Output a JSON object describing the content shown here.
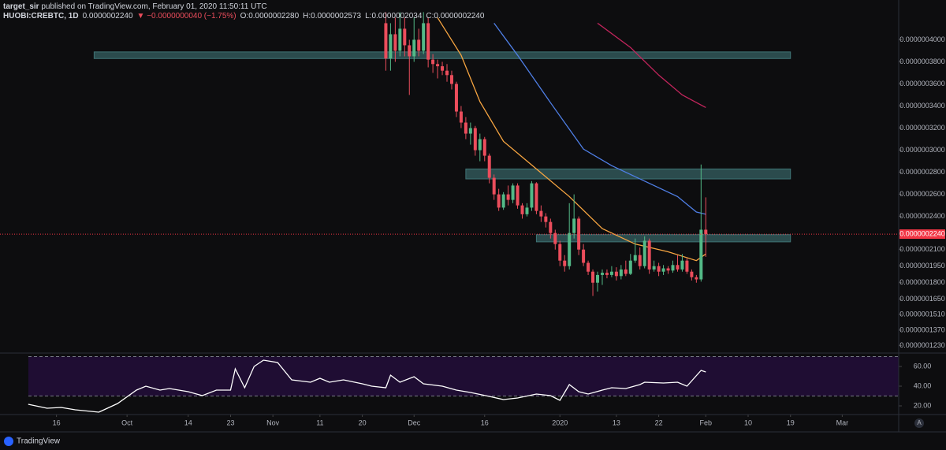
{
  "header": {
    "author": "target_sir",
    "published": " published on TradingView.com, February 01, 2020 11:50:11 UTC",
    "symbol": "HUOBI:CREBTC, 1D",
    "last": "0.0000002240",
    "change": "▼ −0.0000000040 (−1.75%)",
    "ohlc": [
      "O:0.0000002280",
      "H:0.0000002573",
      "L:0.0000002034",
      "C:0.0000002240"
    ]
  },
  "chart_data": [
    {
      "type": "candlestick",
      "x": [
        "2019-11-25",
        "2019-11-26",
        "2019-11-27",
        "2019-11-28",
        "2019-11-29",
        "2019-11-30",
        "2019-12-01",
        "2019-12-02",
        "2019-12-03",
        "2019-12-04",
        "2019-12-05",
        "2019-12-06",
        "2019-12-07",
        "2019-12-08",
        "2019-12-09",
        "2019-12-10",
        "2019-12-11",
        "2019-12-12",
        "2019-12-13",
        "2019-12-14",
        "2019-12-15",
        "2019-12-16",
        "2019-12-17",
        "2019-12-18",
        "2019-12-19",
        "2019-12-20",
        "2019-12-21",
        "2019-12-22",
        "2019-12-23",
        "2019-12-24",
        "2019-12-25",
        "2019-12-26",
        "2019-12-27",
        "2019-12-28",
        "2019-12-29",
        "2019-12-30",
        "2019-12-31",
        "2020-01-01",
        "2020-01-02",
        "2020-01-03",
        "2020-01-04",
        "2020-01-05",
        "2020-01-06",
        "2020-01-07",
        "2020-01-08",
        "2020-01-09",
        "2020-01-10",
        "2020-01-11",
        "2020-01-12",
        "2020-01-13",
        "2020-01-14",
        "2020-01-15",
        "2020-01-16",
        "2020-01-17",
        "2020-01-18",
        "2020-01-19",
        "2020-01-20",
        "2020-01-21",
        "2020-01-22",
        "2020-01-23",
        "2020-01-24",
        "2020-01-25",
        "2020-01-26",
        "2020-01-27",
        "2020-01-28",
        "2020-01-29",
        "2020-01-30",
        "2020-01-31",
        "2020-02-01"
      ],
      "open": [
        4.15e-07,
        3.83e-07,
        4.05e-07,
        3.9e-07,
        4.1e-07,
        3.95e-07,
        3.85e-07,
        4e-07,
        3.9e-07,
        4.15e-07,
        3.82e-07,
        3.78e-07,
        3.76e-07,
        3.72e-07,
        3.68e-07,
        3.6e-07,
        3.35e-07,
        3.25e-07,
        3.15e-07,
        3.2e-07,
        3e-07,
        3.1e-07,
        2.95e-07,
        2.75e-07,
        2.6e-07,
        2.48e-07,
        2.6e-07,
        2.55e-07,
        2.68e-07,
        2.5e-07,
        2.42e-07,
        2.48e-07,
        2.7e-07,
        2.45e-07,
        2.4e-07,
        2.35e-07,
        2.25e-07,
        2.15e-07,
        2e-07,
        1.95e-07,
        2.25e-07,
        2.38e-07,
        2.1e-07,
        1.98e-07,
        1.9e-07,
        1.8e-07,
        1.87e-07,
        1.89e-07,
        1.87e-07,
        1.9e-07,
        1.86e-07,
        1.92e-07,
        1.88e-07,
        2e-07,
        2.05e-07,
        1.95e-07,
        2.18e-07,
        1.92e-07,
        1.95e-07,
        1.9e-07,
        1.93e-07,
        1.91e-07,
        1.96e-07,
        1.92e-07,
        2e-07,
        1.9e-07,
        1.85e-07,
        1.83e-07,
        2.28e-07
      ],
      "high": [
        4.25e-07,
        4.15e-07,
        4.2e-07,
        4.25e-07,
        4.2e-07,
        4e-07,
        4.2e-07,
        4.1e-07,
        4.25e-07,
        4.2e-07,
        3.87e-07,
        3.82e-07,
        3.8e-07,
        3.78e-07,
        3.72e-07,
        3.62e-07,
        3.4e-07,
        3.3e-07,
        3.25e-07,
        3.22e-07,
        3.15e-07,
        3.12e-07,
        2.97e-07,
        2.78e-07,
        2.65e-07,
        2.62e-07,
        2.68e-07,
        2.7e-07,
        2.7e-07,
        2.52e-07,
        2.52e-07,
        2.72e-07,
        2.71e-07,
        2.5e-07,
        2.43e-07,
        2.38e-07,
        2.28e-07,
        2.18e-07,
        2.05e-07,
        2.52e-07,
        2.6e-07,
        2.4e-07,
        2.15e-07,
        2e-07,
        1.92e-07,
        1.9e-07,
        1.92e-07,
        1.92e-07,
        1.95e-07,
        1.94e-07,
        1.96e-07,
        2e-07,
        2.06e-07,
        2.2e-07,
        2.12e-07,
        2.22e-07,
        2.2e-07,
        2e-07,
        1.98e-07,
        1.96e-07,
        1.95e-07,
        2e-07,
        2.05e-07,
        2.06e-07,
        2.02e-07,
        1.92e-07,
        1.87e-07,
        2.87e-07,
        2.573e-07
      ],
      "low": [
        3.72e-07,
        3.72e-07,
        3.8e-07,
        3.85e-07,
        3.85e-07,
        3.5e-07,
        3.8e-07,
        3.85e-07,
        3.87e-07,
        3.75e-07,
        3.7e-07,
        3.65e-07,
        3.68e-07,
        3.62e-07,
        3.55e-07,
        3.3e-07,
        3.2e-07,
        3.1e-07,
        3.05e-07,
        2.95e-07,
        2.9e-07,
        2.9e-07,
        2.7e-07,
        2.55e-07,
        2.45e-07,
        2.46e-07,
        2.5e-07,
        2.52e-07,
        2.47e-07,
        2.38e-07,
        2.4e-07,
        2.45e-07,
        2.42e-07,
        2.35e-07,
        2.3e-07,
        2.2e-07,
        2.1e-07,
        1.95e-07,
        1.9e-07,
        1.92e-07,
        2.2e-07,
        2.05e-07,
        1.95e-07,
        1.87e-07,
        1.68e-07,
        1.72e-07,
        1.78e-07,
        1.84e-07,
        1.85e-07,
        1.82e-07,
        1.83e-07,
        1.86e-07,
        1.87e-07,
        1.98e-07,
        1.92e-07,
        1.93e-07,
        1.88e-07,
        1.9e-07,
        1.86e-07,
        1.87e-07,
        1.88e-07,
        1.89e-07,
        1.9e-07,
        1.9e-07,
        1.88e-07,
        1.82e-07,
        1.8e-07,
        1.81e-07,
        2.034e-07
      ],
      "close": [
        3.83e-07,
        4.05e-07,
        3.9e-07,
        4.1e-07,
        3.95e-07,
        3.85e-07,
        4e-07,
        3.9e-07,
        4.15e-07,
        3.82e-07,
        3.78e-07,
        3.76e-07,
        3.72e-07,
        3.68e-07,
        3.6e-07,
        3.35e-07,
        3.25e-07,
        3.15e-07,
        3.2e-07,
        3e-07,
        3.1e-07,
        2.95e-07,
        2.75e-07,
        2.6e-07,
        2.48e-07,
        2.6e-07,
        2.55e-07,
        2.68e-07,
        2.5e-07,
        2.42e-07,
        2.48e-07,
        2.7e-07,
        2.45e-07,
        2.4e-07,
        2.35e-07,
        2.25e-07,
        2.15e-07,
        2e-07,
        1.95e-07,
        2.25e-07,
        2.38e-07,
        2.1e-07,
        1.98e-07,
        1.9e-07,
        1.8e-07,
        1.87e-07,
        1.89e-07,
        1.87e-07,
        1.9e-07,
        1.86e-07,
        1.92e-07,
        1.88e-07,
        2e-07,
        2.05e-07,
        1.95e-07,
        2.18e-07,
        1.92e-07,
        1.95e-07,
        1.9e-07,
        1.93e-07,
        1.91e-07,
        1.96e-07,
        1.92e-07,
        2e-07,
        1.9e-07,
        1.85e-07,
        1.83e-07,
        2.28e-07,
        2.24e-07
      ],
      "up_color": "#53b987",
      "down_color": "#eb4d5c",
      "xlim": [
        "2019-09-04",
        "2020-03-13"
      ],
      "ylim": [
        1.17e-07,
        4.36e-07
      ],
      "yticks": [
        {
          "value": 4e-07,
          "label": "0.0000004000"
        },
        {
          "value": 3.8e-07,
          "label": "0.0000003800"
        },
        {
          "value": 3.6e-07,
          "label": "0.0000003600"
        },
        {
          "value": 3.4e-07,
          "label": "0.0000003400"
        },
        {
          "value": 3.2e-07,
          "label": "0.0000003200"
        },
        {
          "value": 3e-07,
          "label": "0.0000003000"
        },
        {
          "value": 2.8e-07,
          "label": "0.0000002800"
        },
        {
          "value": 2.6e-07,
          "label": "0.0000002600"
        },
        {
          "value": 2.4e-07,
          "label": "0.0000002400"
        },
        {
          "value": 2.1e-07,
          "label": "0.0000002100"
        },
        {
          "value": 1.95e-07,
          "label": "0.0000001950"
        },
        {
          "value": 1.8e-07,
          "label": "0.0000001800"
        },
        {
          "value": 1.65e-07,
          "label": "0.0000001650"
        },
        {
          "value": 1.51e-07,
          "label": "0.0000001510"
        },
        {
          "value": 1.37e-07,
          "label": "0.0000001370"
        },
        {
          "value": 1.23e-07,
          "label": "0.0000001230"
        }
      ],
      "xticks": [
        {
          "value": "2019-09-16",
          "label": "16"
        },
        {
          "value": "2019-10-01",
          "label": "Oct"
        },
        {
          "value": "2019-10-14",
          "label": "14"
        },
        {
          "value": "2019-10-23",
          "label": "23"
        },
        {
          "value": "2019-11-01",
          "label": "Nov"
        },
        {
          "value": "2019-11-11",
          "label": "11"
        },
        {
          "value": "2019-11-20",
          "label": "20"
        },
        {
          "value": "2019-12-01",
          "label": "Dec"
        },
        {
          "value": "2019-12-16",
          "label": "16"
        },
        {
          "value": "2020-01-01",
          "label": "2020"
        },
        {
          "value": "2020-01-13",
          "label": "13"
        },
        {
          "value": "2020-01-22",
          "label": "22"
        },
        {
          "value": "2020-02-01",
          "label": "Feb"
        },
        {
          "value": "2020-02-10",
          "label": "10"
        },
        {
          "value": "2020-02-19",
          "label": "19"
        },
        {
          "value": "2020-03-01",
          "label": "Mar"
        }
      ],
      "series": [
        {
          "color": "#f7a541",
          "x": [
            "2019-12-06",
            "2019-12-11",
            "2019-12-15",
            "2019-12-20",
            "2019-12-27",
            "2020-01-03",
            "2020-01-10",
            "2020-01-17",
            "2020-01-24",
            "2020-01-30",
            "2020-02-01"
          ],
          "values": [
            4.2e-07,
            3.86e-07,
            3.44e-07,
            3.08e-07,
            2.83e-07,
            2.58e-07,
            2.29e-07,
            2.15e-07,
            2.08e-07,
            2e-07,
            2.06e-07
          ]
        },
        {
          "color": "#4f7fe6",
          "x": [
            "2019-12-18",
            "2019-12-23",
            "2019-12-30",
            "2020-01-06",
            "2020-01-12",
            "2020-01-19",
            "2020-01-26",
            "2020-01-30",
            "2020-02-01"
          ],
          "values": [
            4.15e-07,
            3.86e-07,
            3.43e-07,
            3.01e-07,
            2.86e-07,
            2.72e-07,
            2.58e-07,
            2.44e-07,
            2.42e-07
          ]
        },
        {
          "color": "#c2255c",
          "x": [
            "2020-01-09",
            "2020-01-16",
            "2020-01-22",
            "2020-01-27",
            "2020-02-01"
          ],
          "values": [
            4.15e-07,
            3.93e-07,
            3.68e-07,
            3.5e-07,
            3.386e-07
          ]
        }
      ],
      "zones": [
        {
          "from": "2019-09-24",
          "to": "2020-02-19",
          "top": 3.89e-07,
          "bottom": 3.83e-07
        },
        {
          "from": "2019-12-12",
          "to": "2020-02-19",
          "top": 2.83e-07,
          "bottom": 2.74e-07
        },
        {
          "from": "2019-12-27",
          "to": "2020-02-19",
          "top": 2.235e-07,
          "bottom": 2.17e-07
        }
      ],
      "zone_color": "#3f7476",
      "price_line": {
        "value": 2.24e-07,
        "label": "0.0000002240",
        "color": "#f23645"
      }
    },
    {
      "type": "line",
      "x": [
        "2019-09-10",
        "2019-09-14",
        "2019-09-17",
        "2019-09-20",
        "2019-09-25",
        "2019-09-29",
        "2019-10-03",
        "2019-10-05",
        "2019-10-08",
        "2019-10-10",
        "2019-10-14",
        "2019-10-17",
        "2019-10-20",
        "2019-10-23",
        "2019-10-24",
        "2019-10-26",
        "2019-10-28",
        "2019-10-30",
        "2019-11-02",
        "2019-11-05",
        "2019-11-09",
        "2019-11-11",
        "2019-11-13",
        "2019-11-16",
        "2019-11-20",
        "2019-11-22",
        "2019-11-25",
        "2019-11-26",
        "2019-11-28",
        "2019-12-01",
        "2019-12-03",
        "2019-12-07",
        "2019-12-10",
        "2019-12-13",
        "2019-12-17",
        "2019-12-20",
        "2019-12-23",
        "2019-12-27",
        "2019-12-30",
        "2020-01-01",
        "2020-01-03",
        "2020-01-05",
        "2020-01-07",
        "2020-01-10",
        "2020-01-12",
        "2020-01-15",
        "2020-01-18",
        "2020-01-19",
        "2020-01-23",
        "2020-01-26",
        "2020-01-28",
        "2020-01-31",
        "2020-02-01"
      ],
      "values": [
        21.6,
        17.6,
        18.4,
        16,
        13.6,
        22.4,
        36,
        40,
        36,
        37.6,
        34.4,
        30.4,
        36,
        36,
        57.6,
        38.4,
        60,
        66.4,
        64,
        46.4,
        44,
        48,
        44,
        46.4,
        42.4,
        40,
        38.4,
        51.2,
        44,
        49.6,
        42.4,
        40,
        36,
        33.6,
        29.6,
        26.4,
        28,
        32,
        30.4,
        25.6,
        41.6,
        34.4,
        32,
        36,
        38.4,
        37.6,
        41.6,
        44,
        43.2,
        44,
        40,
        56,
        54.4
      ],
      "color": "#ffffff",
      "xlim": [
        "2019-09-04",
        "2020-03-13"
      ],
      "ylim": [
        12,
        72
      ],
      "yticks": [
        {
          "value": 60,
          "label": "60.00"
        },
        {
          "value": 40,
          "label": "40.00"
        },
        {
          "value": 20,
          "label": "20.00"
        }
      ],
      "bands": [
        30,
        70
      ],
      "band_color": "#1f0d33"
    }
  ],
  "footer": "TradingView"
}
